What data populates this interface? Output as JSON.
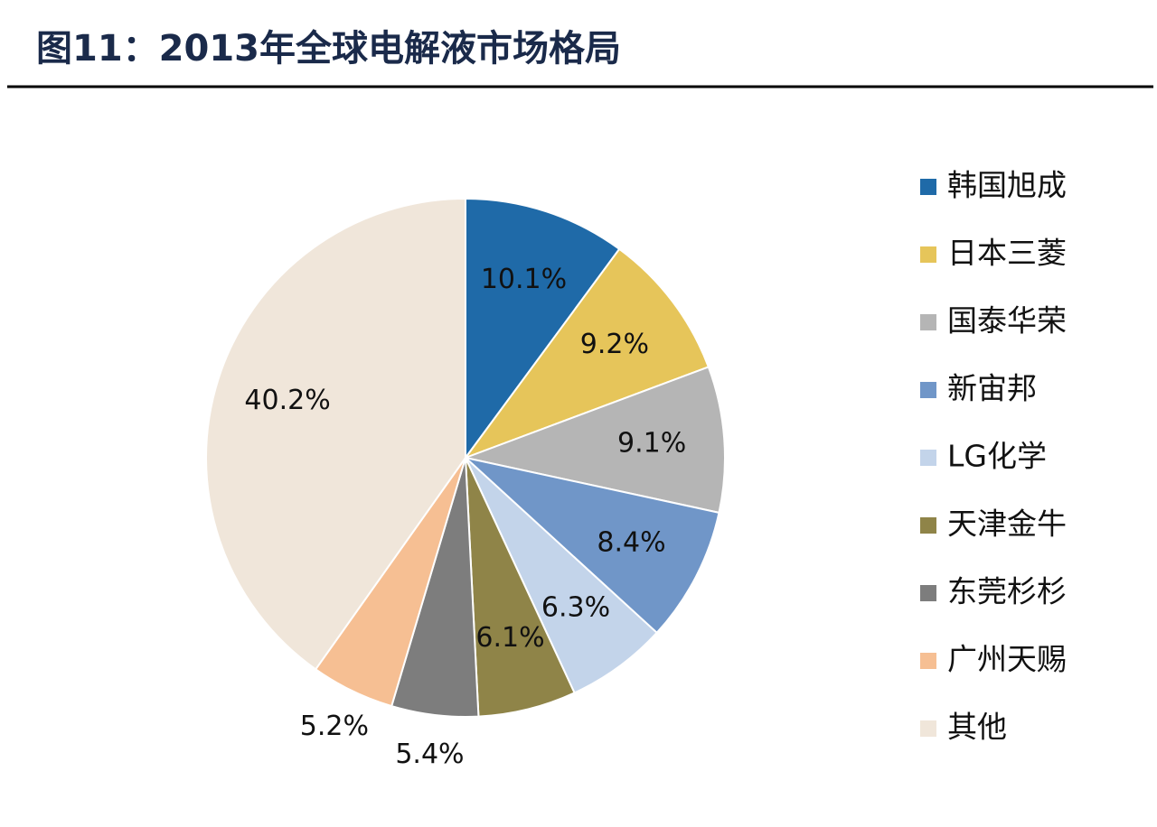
{
  "chart_data": {
    "type": "pie",
    "title": "图11：2013年全球电解液市场格局",
    "categories": [
      "韩国旭成",
      "日本三菱",
      "国泰华荣",
      "新宙邦",
      "LG化学",
      "天津金牛",
      "东莞杉杉",
      "广州天赐",
      "其他"
    ],
    "values": [
      10.1,
      9.2,
      9.1,
      8.4,
      6.3,
      6.1,
      5.4,
      5.2,
      40.2
    ],
    "value_labels": [
      "10.1%",
      "9.2%",
      "9.1%",
      "8.4%",
      "6.3%",
      "6.1%",
      "5.4%",
      "5.2%",
      "40.2%"
    ],
    "colors": [
      "#1f6aa8",
      "#e6c55a",
      "#b5b5b5",
      "#7096c8",
      "#c3d4ea",
      "#8f8448",
      "#7d7d7d",
      "#f6bf93",
      "#f0e6da"
    ],
    "legend": "right"
  }
}
